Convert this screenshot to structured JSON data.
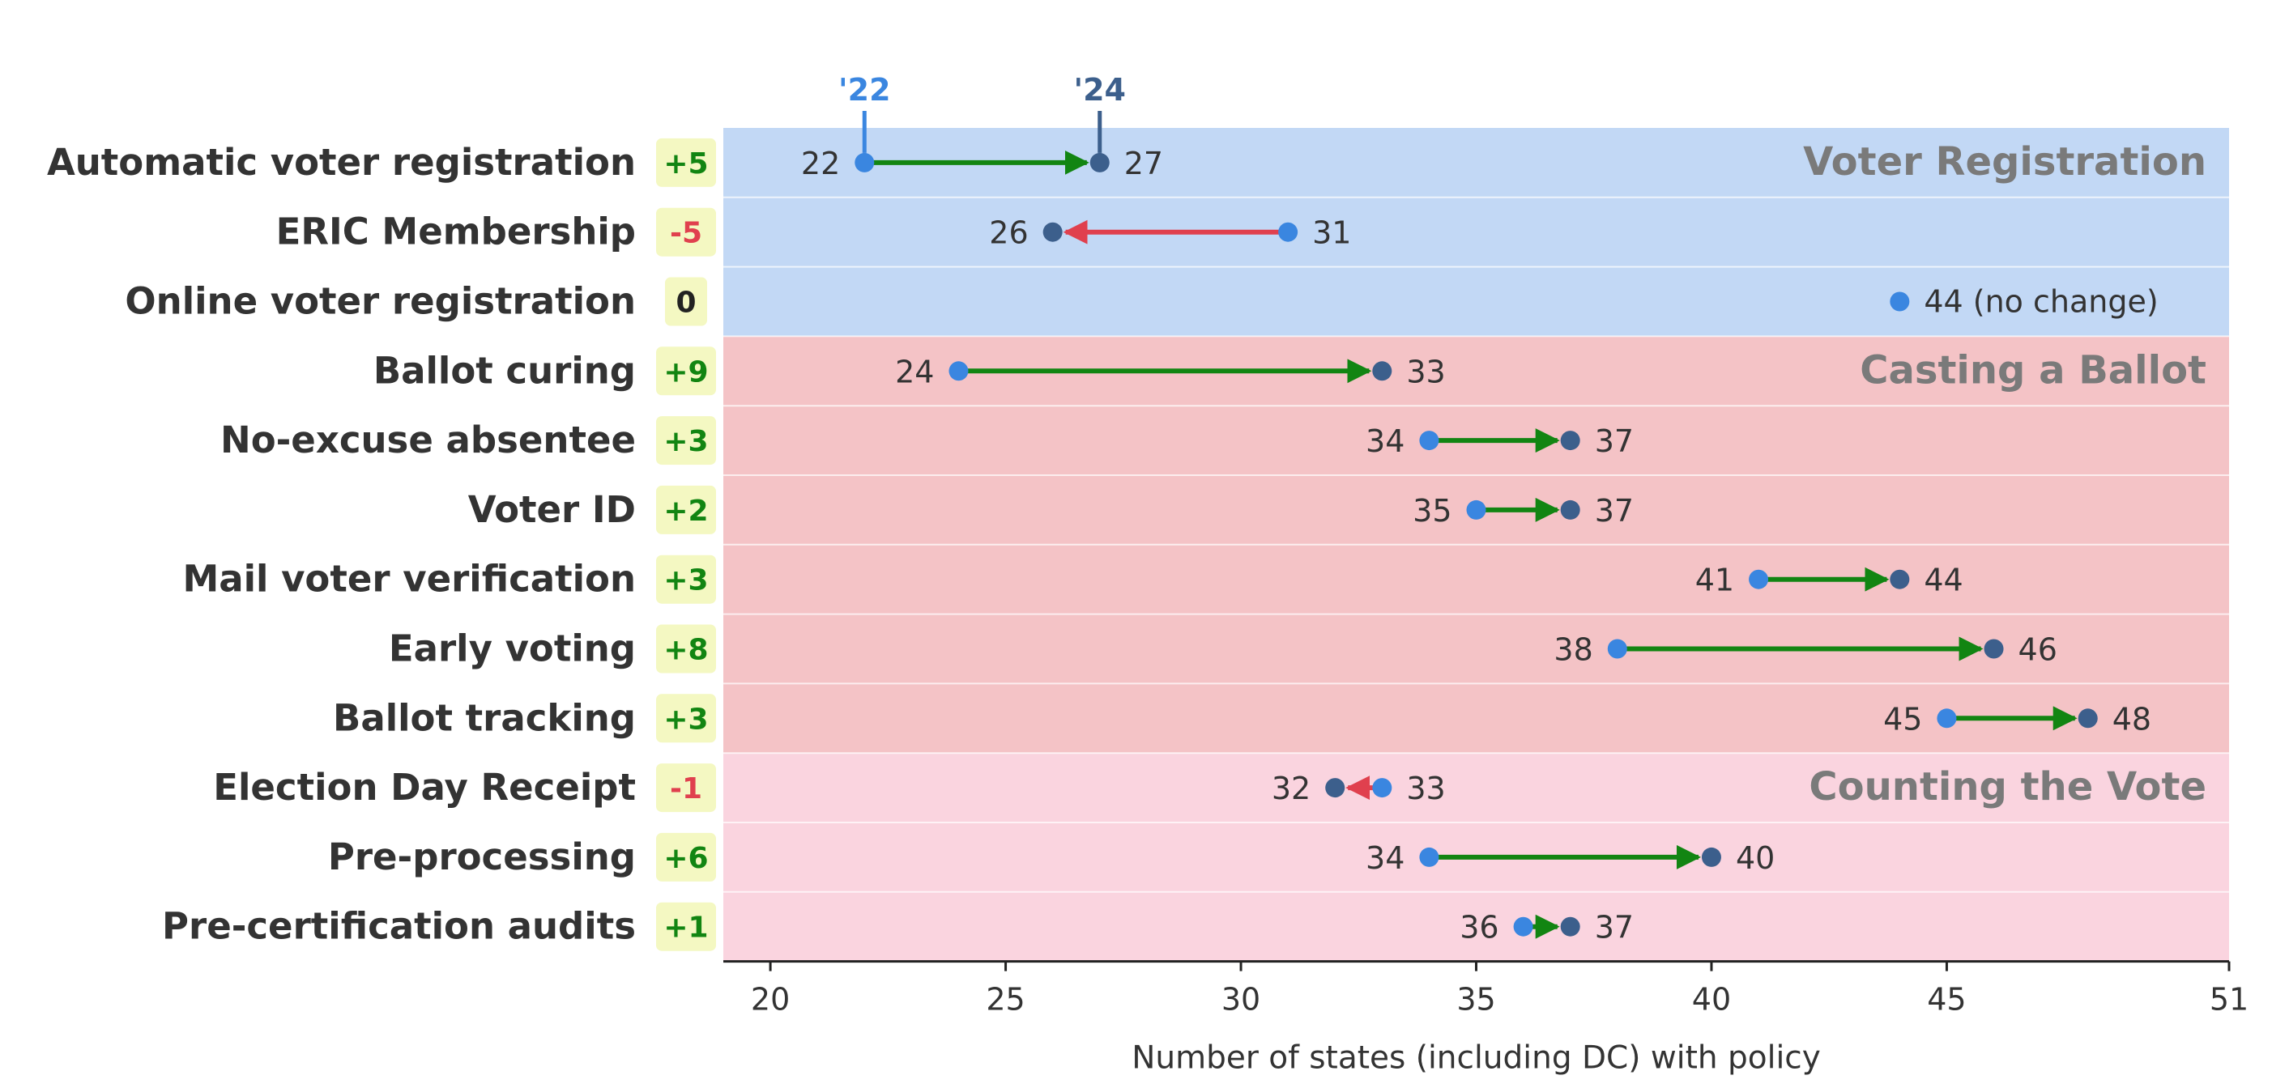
{
  "chart_data": {
    "type": "dumbbell",
    "xlabel": "Number of states (including DC) with policy",
    "xlim": [
      19,
      51
    ],
    "xticks": [
      20,
      25,
      30,
      35,
      40,
      45,
      51
    ],
    "legend": {
      "start_label": "'22",
      "end_label": "'24"
    },
    "sections": [
      {
        "name": "Voter Registration",
        "color": "#c2d8f5"
      },
      {
        "name": "Casting a Ballot",
        "color": "#f4c3c6"
      },
      {
        "name": "Counting the Vote",
        "color": "#fad4df"
      }
    ],
    "rows": [
      {
        "label": "Automatic voter registration",
        "section": 0,
        "y2022": 22,
        "y2024": 27,
        "change": "+5"
      },
      {
        "label": "ERIC Membership",
        "section": 0,
        "y2022": 31,
        "y2024": 26,
        "change": "-5"
      },
      {
        "label": "Online voter registration",
        "section": 0,
        "y2022": 44,
        "y2024": 44,
        "change": "0",
        "note": "44 (no change)"
      },
      {
        "label": "Ballot curing",
        "section": 1,
        "y2022": 24,
        "y2024": 33,
        "change": "+9"
      },
      {
        "label": "No-excuse absentee",
        "section": 1,
        "y2022": 34,
        "y2024": 37,
        "change": "+3"
      },
      {
        "label": "Voter ID",
        "section": 1,
        "y2022": 35,
        "y2024": 37,
        "change": "+2"
      },
      {
        "label": "Mail voter verification",
        "section": 1,
        "y2022": 41,
        "y2024": 44,
        "change": "+3"
      },
      {
        "label": "Early voting",
        "section": 1,
        "y2022": 38,
        "y2024": 46,
        "change": "+8"
      },
      {
        "label": "Ballot tracking",
        "section": 1,
        "y2022": 45,
        "y2024": 48,
        "change": "+3"
      },
      {
        "label": "Election Day Receipt",
        "section": 2,
        "y2022": 33,
        "y2024": 32,
        "change": "-1"
      },
      {
        "label": "Pre-processing",
        "section": 2,
        "y2022": 34,
        "y2024": 40,
        "change": "+6"
      },
      {
        "label": "Pre-certification audits",
        "section": 2,
        "y2022": 36,
        "y2024": 37,
        "change": "+1"
      }
    ],
    "colors": {
      "start_dot": "#3a86e0",
      "end_dot": "#3c5f8c",
      "increase": "#128512",
      "decrease": "#e0404e",
      "neutral_text": "#222222",
      "badge_bg": "#f4f8c2",
      "section_label": "#7a7a7a"
    }
  }
}
